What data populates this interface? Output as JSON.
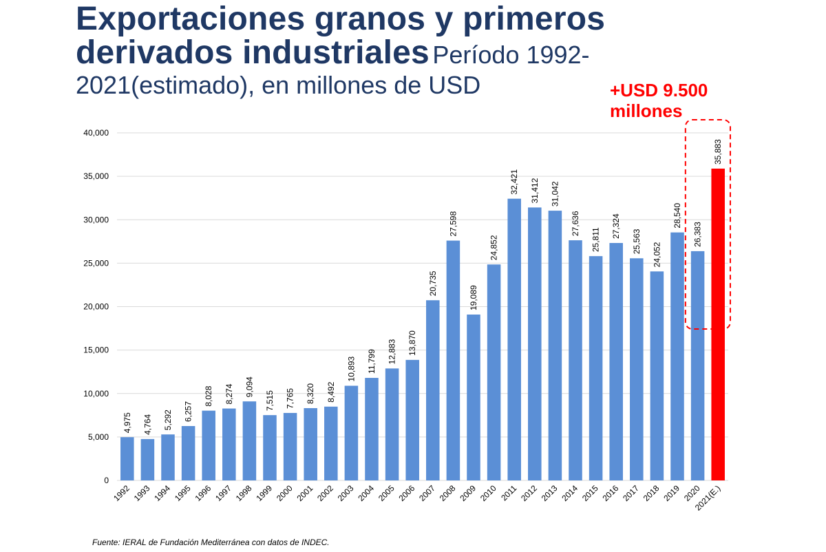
{
  "title": {
    "bold_line1": "Exportaciones granos y primeros",
    "bold_line2": "derivados industriales",
    "light_part": "Período 1992-",
    "line3": "2021(estimado), en millones de USD"
  },
  "callout": {
    "line1": "+USD 9.500",
    "line2": "millones"
  },
  "source": "Fuente: IERAL de Fundación Mediterránea con datos de INDEC.",
  "colors": {
    "bar": "#5b8fd6",
    "highlight_bar": "#ff0000",
    "title": "#1f3864",
    "callout": "#ff0000",
    "grid": "#d9d9d9"
  },
  "chart_data": {
    "type": "bar",
    "title": "Exportaciones granos y primeros derivados industriales Período 1992-2021(estimado), en millones de USD",
    "xlabel": "",
    "ylabel": "",
    "ylim": [
      0,
      40000
    ],
    "yticks": [
      "0",
      "5,000",
      "10,000",
      "15,000",
      "20,000",
      "25,000",
      "30,000",
      "35,000",
      "40,000"
    ],
    "grid": true,
    "categories": [
      "1992",
      "1993",
      "1994",
      "1995",
      "1996",
      "1997",
      "1998",
      "1999",
      "2000",
      "2001",
      "2002",
      "2003",
      "2004",
      "2005",
      "2006",
      "2007",
      "2008",
      "2009",
      "2010",
      "2011",
      "2012",
      "2013",
      "2014",
      "2015",
      "2016",
      "2017",
      "2018",
      "2019",
      "2020",
      "2021(E.)"
    ],
    "values": [
      4975,
      4764,
      5292,
      6257,
      8028,
      8274,
      9094,
      7515,
      7765,
      8320,
      8492,
      10893,
      11799,
      12883,
      13870,
      20735,
      27598,
      19089,
      24852,
      32421,
      31412,
      31042,
      27636,
      25811,
      27324,
      25563,
      24052,
      28540,
      26383,
      35883
    ],
    "value_labels": [
      "4,975",
      "4,764",
      "5,292",
      "6,257",
      "8,028",
      "8,274",
      "9,094",
      "7,515",
      "7,765",
      "8,320",
      "8,492",
      "10,893",
      "11,799",
      "12,883",
      "13,870",
      "20,735",
      "27,598",
      "19,089",
      "24,852",
      "32,421",
      "31,412",
      "31,042",
      "27,636",
      "25,811",
      "27,324",
      "25,563",
      "24,052",
      "28,540",
      "26,383",
      "35,883"
    ],
    "highlight_index": 29
  }
}
